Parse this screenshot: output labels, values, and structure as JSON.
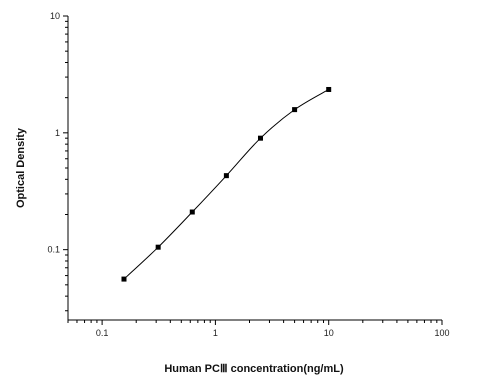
{
  "chart_data": {
    "type": "scatter",
    "title": "",
    "xlabel": "Human PCⅢ concentration(ng/mL)",
    "ylabel": "Optical Density",
    "x_scale": "log",
    "y_scale": "log",
    "xlim": [
      0.05,
      100
    ],
    "ylim": [
      0.025,
      10
    ],
    "x_ticks": [
      "0.1",
      "1",
      "10",
      "100"
    ],
    "y_ticks": [
      "0.1",
      "1",
      "10"
    ],
    "grid": false,
    "legend": "none",
    "series": [
      {
        "points": [
          {
            "x": 0.156,
            "y": 0.056
          },
          {
            "x": 0.3125,
            "y": 0.105
          },
          {
            "x": 0.625,
            "y": 0.21
          },
          {
            "x": 1.25,
            "y": 0.43
          },
          {
            "x": 2.5,
            "y": 0.9
          },
          {
            "x": 5,
            "y": 1.58
          },
          {
            "x": 10,
            "y": 2.35
          }
        ],
        "fit_curve": true
      }
    ],
    "colors": {
      "line": "#000000",
      "marker": "#000000"
    }
  }
}
